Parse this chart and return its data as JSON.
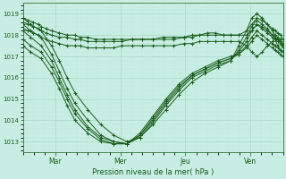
{
  "xlabel": "Pression niveau de la mer( hPa )",
  "bg_color": "#c8eee4",
  "line_color": "#1a5c1a",
  "grid_major_color": "#a8d8c8",
  "grid_minor_color": "#c0e8d8",
  "yticks": [
    1013,
    1014,
    1015,
    1016,
    1017,
    1018,
    1019
  ],
  "ymin": 1012.5,
  "ymax": 1019.5,
  "day_labels": [
    "Mar",
    "Mer",
    "Jeu",
    "Ven"
  ],
  "day_positions": [
    0.125,
    0.375,
    0.625,
    0.875
  ],
  "series": [
    {
      "x": [
        0.0,
        0.02,
        0.04,
        0.06,
        0.07,
        0.09,
        0.11,
        0.14,
        0.17,
        0.2,
        0.22,
        0.25,
        0.28,
        0.31,
        0.35,
        0.38,
        0.42,
        0.46,
        0.5,
        0.54,
        0.58,
        0.62,
        0.65,
        0.68,
        0.71,
        0.74,
        0.77,
        0.8,
        0.83,
        0.86,
        0.88,
        0.9,
        0.92,
        0.94,
        0.96,
        0.97,
        0.98,
        0.99,
        1.0
      ],
      "y": [
        1018.8,
        1018.7,
        1018.6,
        1018.5,
        1018.4,
        1018.3,
        1018.2,
        1018.1,
        1018.0,
        1018.0,
        1017.9,
        1017.9,
        1017.8,
        1017.8,
        1017.8,
        1017.8,
        1017.8,
        1017.8,
        1017.8,
        1017.9,
        1017.9,
        1017.9,
        1018.0,
        1018.0,
        1018.1,
        1018.1,
        1018.0,
        1018.0,
        1018.0,
        1018.2,
        1018.5,
        1018.8,
        1018.7,
        1018.5,
        1018.3,
        1018.2,
        1018.1,
        1018.0,
        1017.8
      ]
    },
    {
      "x": [
        0.0,
        0.02,
        0.04,
        0.06,
        0.07,
        0.09,
        0.11,
        0.14,
        0.17,
        0.2,
        0.22,
        0.25,
        0.28,
        0.31,
        0.35,
        0.38,
        0.42,
        0.46,
        0.5,
        0.54,
        0.58,
        0.62,
        0.65,
        0.68,
        0.71,
        0.74,
        0.77,
        0.8,
        0.83,
        0.86,
        0.88,
        0.9,
        0.92,
        0.94,
        0.96,
        0.97,
        0.98,
        0.99,
        1.0
      ],
      "y": [
        1018.6,
        1018.5,
        1018.4,
        1018.3,
        1018.2,
        1018.1,
        1018.0,
        1017.9,
        1017.9,
        1017.8,
        1017.8,
        1017.7,
        1017.7,
        1017.7,
        1017.7,
        1017.7,
        1017.8,
        1017.8,
        1017.8,
        1017.8,
        1017.8,
        1017.9,
        1017.9,
        1018.0,
        1018.0,
        1018.0,
        1018.0,
        1018.0,
        1018.0,
        1018.0,
        1018.2,
        1018.5,
        1018.4,
        1018.2,
        1018.0,
        1017.9,
        1017.8,
        1017.7,
        1017.5
      ]
    },
    {
      "x": [
        0.0,
        0.02,
        0.04,
        0.06,
        0.07,
        0.09,
        0.11,
        0.14,
        0.17,
        0.2,
        0.22,
        0.25,
        0.28,
        0.31,
        0.35,
        0.38,
        0.42,
        0.46,
        0.5,
        0.54,
        0.58,
        0.62,
        0.65,
        0.68,
        0.71,
        0.74,
        0.77,
        0.8,
        0.83,
        0.86,
        0.88,
        0.9,
        0.92,
        0.94,
        0.96,
        0.97,
        0.98,
        0.99,
        1.0
      ],
      "y": [
        1018.3,
        1018.2,
        1018.1,
        1018.0,
        1017.9,
        1017.8,
        1017.7,
        1017.6,
        1017.5,
        1017.5,
        1017.5,
        1017.4,
        1017.4,
        1017.4,
        1017.4,
        1017.5,
        1017.5,
        1017.5,
        1017.5,
        1017.5,
        1017.5,
        1017.6,
        1017.6,
        1017.7,
        1017.7,
        1017.7,
        1017.7,
        1017.7,
        1017.7,
        1017.5,
        1017.2,
        1017.0,
        1017.2,
        1017.5,
        1017.7,
        1017.8,
        1017.5,
        1017.3,
        1017.2
      ]
    },
    {
      "x": [
        0.0,
        0.03,
        0.07,
        0.11,
        0.14,
        0.17,
        0.2,
        0.25,
        0.3,
        0.35,
        0.4,
        0.45,
        0.5,
        0.55,
        0.6,
        0.65,
        0.7,
        0.75,
        0.8,
        0.83,
        0.86,
        0.88,
        0.9,
        0.92,
        0.94,
        0.96,
        0.97,
        0.98,
        0.99,
        1.0
      ],
      "y": [
        1018.8,
        1018.5,
        1018.2,
        1017.5,
        1016.8,
        1016.0,
        1015.3,
        1014.5,
        1013.8,
        1013.3,
        1013.0,
        1013.2,
        1013.8,
        1014.5,
        1015.2,
        1015.8,
        1016.2,
        1016.5,
        1016.8,
        1017.5,
        1018.2,
        1018.8,
        1019.0,
        1018.8,
        1018.5,
        1018.2,
        1018.0,
        1017.9,
        1017.8,
        1017.6
      ]
    },
    {
      "x": [
        0.0,
        0.03,
        0.07,
        0.11,
        0.14,
        0.17,
        0.2,
        0.25,
        0.3,
        0.35,
        0.4,
        0.45,
        0.5,
        0.55,
        0.6,
        0.65,
        0.7,
        0.75,
        0.8,
        0.83,
        0.86,
        0.88,
        0.9,
        0.92,
        0.94,
        0.96,
        0.97,
        0.98,
        0.99,
        1.0
      ],
      "y": [
        1018.5,
        1018.2,
        1017.9,
        1017.1,
        1016.3,
        1015.5,
        1014.8,
        1014.0,
        1013.3,
        1013.0,
        1012.9,
        1013.2,
        1013.9,
        1014.7,
        1015.4,
        1016.0,
        1016.3,
        1016.6,
        1016.8,
        1017.3,
        1017.9,
        1018.4,
        1018.7,
        1018.5,
        1018.3,
        1018.0,
        1017.9,
        1017.8,
        1017.7,
        1017.5
      ]
    },
    {
      "x": [
        0.0,
        0.03,
        0.07,
        0.11,
        0.14,
        0.17,
        0.2,
        0.25,
        0.3,
        0.35,
        0.4,
        0.45,
        0.5,
        0.55,
        0.6,
        0.65,
        0.7,
        0.75,
        0.8,
        0.83,
        0.86,
        0.88,
        0.9,
        0.92,
        0.94,
        0.96,
        0.97,
        0.98,
        0.99,
        1.0
      ],
      "y": [
        1018.2,
        1017.9,
        1017.5,
        1016.8,
        1016.0,
        1015.2,
        1014.5,
        1013.7,
        1013.2,
        1013.0,
        1012.9,
        1013.3,
        1014.0,
        1014.8,
        1015.5,
        1016.1,
        1016.4,
        1016.7,
        1016.9,
        1017.2,
        1017.7,
        1018.2,
        1018.5,
        1018.3,
        1018.1,
        1017.9,
        1017.8,
        1017.7,
        1017.6,
        1017.4
      ]
    },
    {
      "x": [
        0.0,
        0.03,
        0.07,
        0.11,
        0.14,
        0.17,
        0.2,
        0.25,
        0.3,
        0.35,
        0.4,
        0.45,
        0.5,
        0.55,
        0.6,
        0.65,
        0.7,
        0.75,
        0.8,
        0.83,
        0.86,
        0.88,
        0.9,
        0.92,
        0.94,
        0.96,
        0.97,
        0.98,
        0.99,
        1.0
      ],
      "y": [
        1017.8,
        1017.5,
        1017.2,
        1016.5,
        1015.8,
        1015.0,
        1014.3,
        1013.6,
        1013.1,
        1012.9,
        1012.9,
        1013.3,
        1014.1,
        1014.9,
        1015.6,
        1016.1,
        1016.4,
        1016.7,
        1016.9,
        1017.1,
        1017.5,
        1017.9,
        1018.2,
        1018.0,
        1017.8,
        1017.6,
        1017.5,
        1017.4,
        1017.3,
        1017.2
      ]
    },
    {
      "x": [
        0.0,
        0.03,
        0.07,
        0.11,
        0.14,
        0.17,
        0.2,
        0.25,
        0.3,
        0.35,
        0.4,
        0.45,
        0.5,
        0.55,
        0.6,
        0.65,
        0.7,
        0.75,
        0.8,
        0.83,
        0.86,
        0.88,
        0.9,
        0.92,
        0.94,
        0.96,
        0.97,
        0.98,
        0.99,
        1.0
      ],
      "y": [
        1017.5,
        1017.2,
        1016.9,
        1016.2,
        1015.5,
        1014.7,
        1014.0,
        1013.4,
        1013.0,
        1012.9,
        1012.9,
        1013.4,
        1014.2,
        1015.0,
        1015.7,
        1016.2,
        1016.5,
        1016.8,
        1017.0,
        1017.1,
        1017.4,
        1017.7,
        1018.0,
        1017.8,
        1017.6,
        1017.4,
        1017.3,
        1017.2,
        1017.1,
        1017.0
      ]
    }
  ]
}
